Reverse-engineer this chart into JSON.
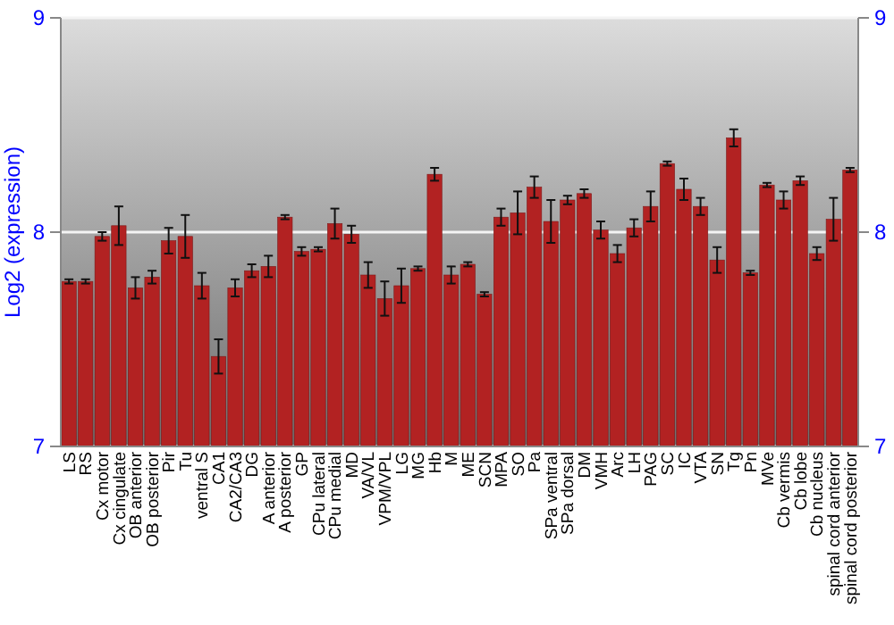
{
  "chart_data": {
    "type": "bar",
    "ylabel": "Log2 (expression)",
    "categories": [
      "LS",
      "RS",
      "Cx motor",
      "Cx cingulate",
      "OB anterior",
      "OB posterior",
      "Pir",
      "Tu",
      "ventral S",
      "CA1",
      "CA2/CA3",
      "DG",
      "A anterior",
      "A posterior",
      "GP",
      "CPu lateral",
      "CPu medial",
      "MD",
      "VA/VL",
      "VPM/VPL",
      "LG",
      "MG",
      "Hb",
      "M",
      "ME",
      "SCN",
      "MPA",
      "SO",
      "Pa",
      "SPa ventral",
      "SPa dorsal",
      "DM",
      "VMH",
      "Arc",
      "LH",
      "PAG",
      "SC",
      "IC",
      "VTA",
      "SN",
      "Tg",
      "Pn",
      "MVe",
      "Cb vermis",
      "Cb lobe",
      "Cb nucleus",
      "spinal cord anterior",
      "spinal cord posterior"
    ],
    "values": [
      7.77,
      7.77,
      7.98,
      8.03,
      7.74,
      7.79,
      7.96,
      7.98,
      7.75,
      7.42,
      7.74,
      7.82,
      7.84,
      8.07,
      7.91,
      7.92,
      8.04,
      7.99,
      7.8,
      7.69,
      7.75,
      7.83,
      8.27,
      7.8,
      7.85,
      7.71,
      8.07,
      8.09,
      8.21,
      8.05,
      8.15,
      8.18,
      8.01,
      7.9,
      8.02,
      8.12,
      8.32,
      8.2,
      8.12,
      7.87,
      8.44,
      7.81,
      8.22,
      8.15,
      8.24,
      7.9,
      8.06,
      8.29
    ],
    "errors": [
      0.01,
      0.01,
      0.02,
      0.09,
      0.05,
      0.03,
      0.06,
      0.1,
      0.06,
      0.08,
      0.04,
      0.03,
      0.05,
      0.01,
      0.02,
      0.01,
      0.07,
      0.04,
      0.06,
      0.08,
      0.08,
      0.01,
      0.03,
      0.04,
      0.01,
      0.01,
      0.04,
      0.1,
      0.05,
      0.1,
      0.02,
      0.02,
      0.04,
      0.04,
      0.04,
      0.07,
      0.01,
      0.05,
      0.04,
      0.06,
      0.04,
      0.01,
      0.01,
      0.04,
      0.02,
      0.03,
      0.1,
      0.01
    ],
    "color": "#b22222",
    "ylim": [
      7,
      9
    ],
    "yticks": [
      7,
      8,
      9
    ],
    "y2lim": [
      7,
      9
    ],
    "y2ticks": [
      7,
      8,
      9
    ],
    "grid": true
  }
}
